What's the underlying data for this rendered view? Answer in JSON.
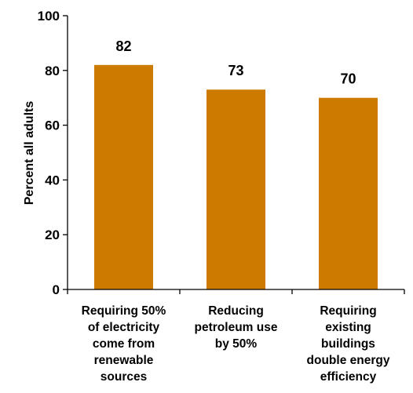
{
  "chart_data": {
    "type": "bar",
    "title": "",
    "xlabel": "",
    "ylabel": "Percent all adults",
    "ylim": [
      0,
      100
    ],
    "yticks": [
      0,
      20,
      40,
      60,
      80,
      100
    ],
    "grid": false,
    "legend": "none",
    "bar_color": "#CC7A00",
    "axis_color": "#000000",
    "categories": [
      [
        "Requiring 50%",
        "of electricity",
        "come from",
        "renewable",
        "sources"
      ],
      [
        "Reducing",
        "petroleum use",
        "by 50%"
      ],
      [
        "Requiring",
        "existing",
        "buildings",
        "double energy",
        "efficiency"
      ]
    ],
    "values": [
      82,
      73,
      70
    ],
    "data_labels": [
      "82",
      "73",
      "70"
    ]
  }
}
